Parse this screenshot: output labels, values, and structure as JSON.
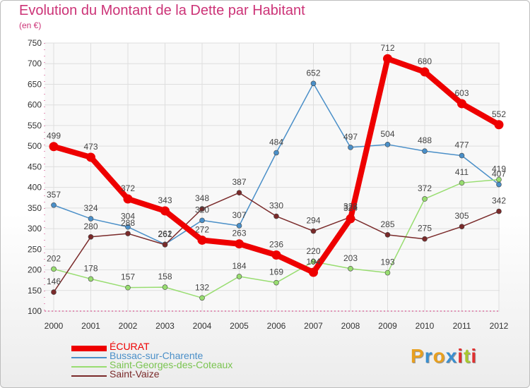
{
  "header": {
    "title": "Evolution du Montant de la Dette par Habitant",
    "subtitle": "(en €)"
  },
  "logo": {
    "text": "Proxiti",
    "colors": [
      "#e8a020",
      "#3a8fd0",
      "#e8a020",
      "#3a8fd0",
      "#e03030",
      "#a8c830",
      "#e03030"
    ]
  },
  "chart_data": {
    "type": "line",
    "title": "Evolution du Montant de la Dette par Habitant",
    "subtitle": "(en €)",
    "x": [
      "2000",
      "2001",
      "2002",
      "2003",
      "2004",
      "2005",
      "2006",
      "2007",
      "2008",
      "2009",
      "2010",
      "2011",
      "2012"
    ],
    "ylim": [
      100,
      750
    ],
    "yticks": [
      100,
      150,
      200,
      250,
      300,
      350,
      400,
      450,
      500,
      550,
      600,
      650,
      700,
      750
    ],
    "grid": true,
    "legend_position": "bottom-left",
    "series": [
      {
        "name": "Bussac-sur-Charente",
        "color": "#4a8fc8",
        "values": [
          357,
          324,
          304,
          262,
          320,
          307,
          484,
          652,
          497,
          504,
          488,
          477,
          407
        ]
      },
      {
        "name": "Saint-Georges-des-Coteaux",
        "color": "#98dd70",
        "values": [
          202,
          178,
          157,
          158,
          132,
          184,
          169,
          220,
          203,
          193,
          372,
          411,
          419
        ]
      },
      {
        "name": "Saint-Vaize",
        "color": "#7a2a2a",
        "values": [
          146,
          280,
          288,
          261,
          348,
          387,
          330,
          294,
          328,
          285,
          275,
          305,
          342
        ]
      },
      {
        "name": "ÉCURAT",
        "color": "#ee0000",
        "values": [
          499,
          473,
          372,
          343,
          272,
          263,
          236,
          194,
          324,
          712,
          680,
          603,
          552
        ]
      }
    ]
  }
}
